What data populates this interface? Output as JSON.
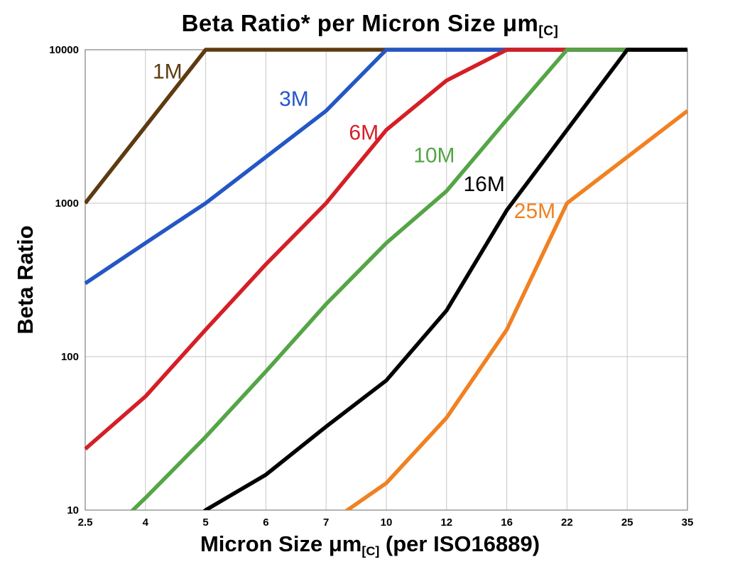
{
  "title": {
    "main": "Beta Ratio* per Micron Size μm",
    "sub": "[C]"
  },
  "y_axis": {
    "label": "Beta Ratio"
  },
  "x_axis": {
    "label_pre": "Micron Size μm",
    "label_sub": "[C]",
    "label_post": " (per ISO16889)"
  },
  "chart_data": {
    "type": "line",
    "title": "Beta Ratio* per Micron Size μm[C]",
    "xlabel": "Micron Size μm[C] (per ISO16889)",
    "ylabel": "Beta Ratio",
    "x_categories": [
      "2.5",
      "4",
      "5",
      "6",
      "7",
      "10",
      "12",
      "16",
      "22",
      "25",
      "35"
    ],
    "y_scale": "log",
    "y_ticks": [
      "10",
      "100",
      "1000",
      "10000"
    ],
    "ylim": [
      10,
      10000
    ],
    "grid": true,
    "legend": "inline-colored-labels",
    "grid_color": "#c6c6c6",
    "border_color": "#9a9a9a",
    "series": [
      {
        "name": "1M",
        "color": "#5e3a10",
        "values": [
          1000,
          3162,
          10000,
          10000,
          10000,
          10000,
          10000,
          10000,
          10000,
          10000,
          10000
        ],
        "label_pos": {
          "xi": 1.12,
          "v": 6500
        }
      },
      {
        "name": "3M",
        "color": "#2457c5",
        "values": [
          300,
          550,
          1000,
          2000,
          4000,
          10000,
          10000,
          10000,
          10000,
          10000,
          10000
        ],
        "label_pos": {
          "xi": 3.22,
          "v": 4300
        }
      },
      {
        "name": "6M",
        "color": "#d41f26",
        "values": [
          25,
          55,
          150,
          400,
          1000,
          3000,
          6300,
          10000,
          10000,
          10000,
          10000
        ],
        "label_pos": {
          "xi": 4.38,
          "v": 2600
        }
      },
      {
        "name": "10M",
        "color": "#54a546",
        "values": [
          5,
          12,
          30,
          80,
          220,
          550,
          1200,
          3500,
          10000,
          10000,
          10000
        ],
        "label_pos": {
          "xi": 5.45,
          "v": 1850
        }
      },
      {
        "name": "16M",
        "color": "#000000",
        "values": [
          null,
          4,
          10,
          17,
          35,
          70,
          200,
          900,
          3000,
          10000,
          10000
        ],
        "label_pos": {
          "xi": 6.28,
          "v": 1200
        }
      },
      {
        "name": "25M",
        "color": "#f08122",
        "values": [
          null,
          null,
          null,
          null,
          8,
          15,
          40,
          150,
          1000,
          2000,
          4000
        ],
        "label_pos": {
          "xi": 7.12,
          "v": 800
        }
      }
    ]
  }
}
